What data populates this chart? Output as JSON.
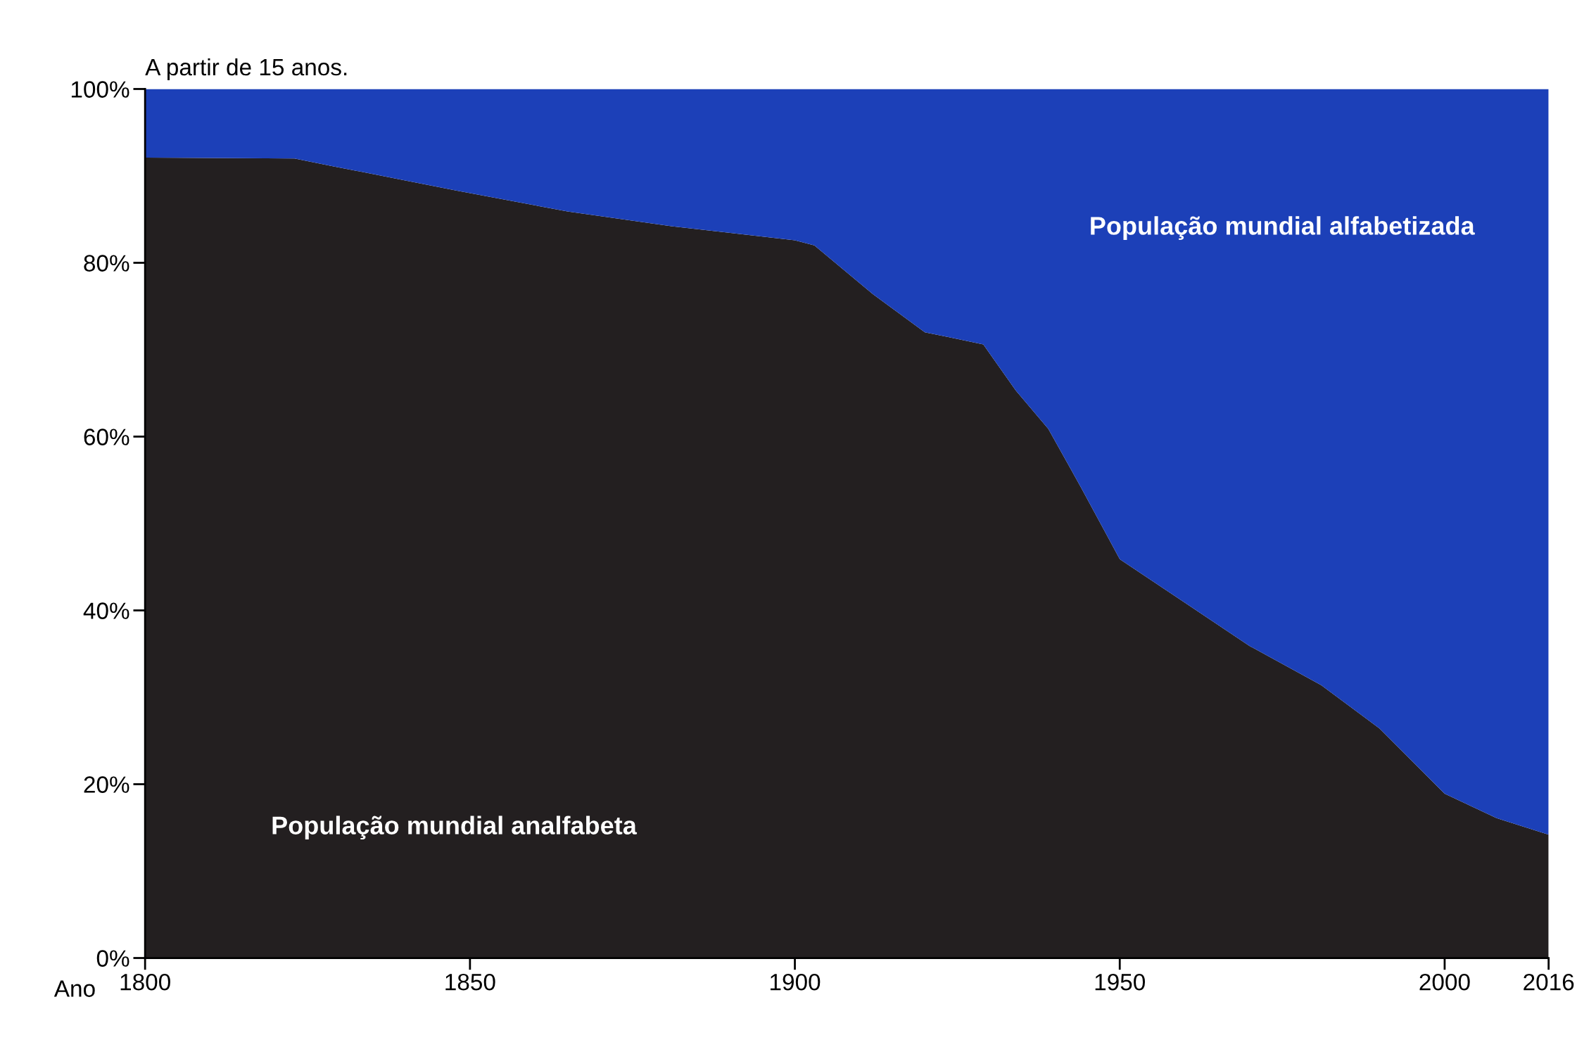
{
  "chart_data": {
    "type": "area",
    "stacked": true,
    "title": "A partir de 15 anos.",
    "xlabel": "Ano",
    "x": [
      1800,
      1823,
      1829,
      1848,
      1865,
      1881,
      1900,
      1903,
      1912,
      1920,
      1924,
      1929,
      1934,
      1939,
      1944,
      1950,
      1959,
      1970,
      1981,
      1990,
      2000,
      2008,
      2016
    ],
    "series": [
      {
        "name": "População mundial analfabeta",
        "color": "#231f20",
        "values": [
          92.1,
          92.0,
          91.1,
          88.3,
          85.9,
          84.2,
          82.6,
          82.0,
          76.4,
          72.0,
          71.4,
          70.6,
          65.3,
          60.9,
          54.2,
          45.9,
          41.4,
          35.9,
          31.4,
          26.4,
          18.9,
          16.1,
          14.2
        ]
      },
      {
        "name": "População mundial alfabetizada",
        "color": "#1c40b8",
        "values": [
          7.9,
          8.0,
          8.9,
          11.7,
          14.1,
          15.8,
          17.4,
          18.0,
          23.6,
          28.0,
          28.6,
          29.4,
          34.7,
          39.1,
          45.8,
          54.1,
          58.6,
          64.1,
          68.6,
          73.6,
          81.1,
          83.9,
          85.8
        ]
      }
    ],
    "xlim": [
      1800,
      2016
    ],
    "xticks": [
      1800,
      1850,
      1900,
      1950,
      2000,
      2016
    ],
    "ylim": [
      0,
      100
    ],
    "yticks": [
      {
        "value": 0,
        "label": "0%"
      },
      {
        "value": 20,
        "label": "20%"
      },
      {
        "value": 40,
        "label": "40%"
      },
      {
        "value": 60,
        "label": "60%"
      },
      {
        "value": 80,
        "label": "80%"
      },
      {
        "value": 100,
        "label": "100%"
      }
    ],
    "grid": false,
    "legend": false
  }
}
